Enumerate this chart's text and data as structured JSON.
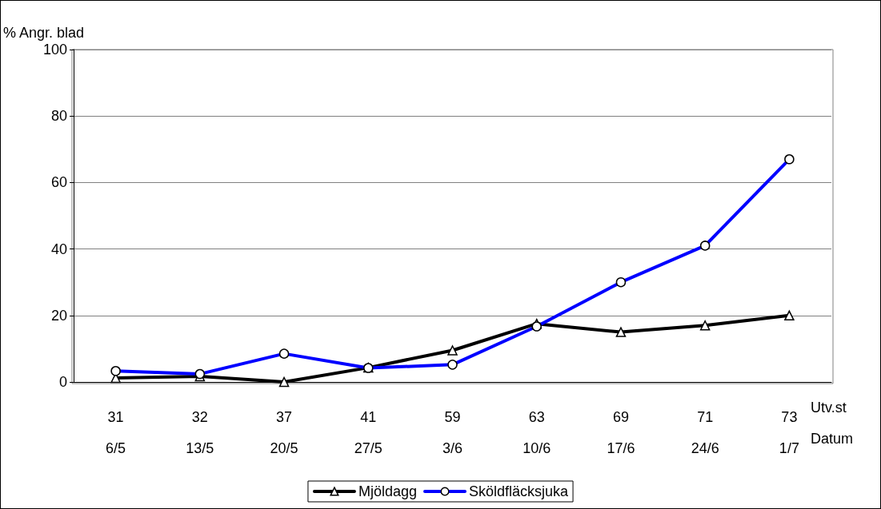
{
  "chart_data": {
    "type": "line",
    "ylabel": "% Angr. blad",
    "categories": [
      "31\n6/5",
      "32\n13/5",
      "37\n20/5",
      "41\n27/5",
      "59\n3/6",
      "63\n10/6",
      "69\n17/6",
      "71\n24/6",
      "73\n1/7"
    ],
    "series": [
      {
        "name": "Mjöldagg",
        "color": "#000000",
        "marker": "triangle",
        "values": [
          1.2,
          1.7,
          0,
          4.3,
          9.5,
          17.5,
          15,
          17,
          20
        ]
      },
      {
        "name": "Sköldfläcksjuka",
        "color": "#0000ff",
        "marker": "circle",
        "values": [
          3.3,
          2.4,
          8.5,
          4.2,
          5.2,
          16.7,
          30,
          41,
          67
        ]
      }
    ],
    "annotations": [
      "Utv.st",
      "Datum"
    ],
    "ylim": [
      0,
      100
    ],
    "yticks": [
      0,
      20,
      40,
      60,
      80,
      100
    ],
    "grid": "y",
    "legend": "bottom",
    "line_style": "solid"
  }
}
